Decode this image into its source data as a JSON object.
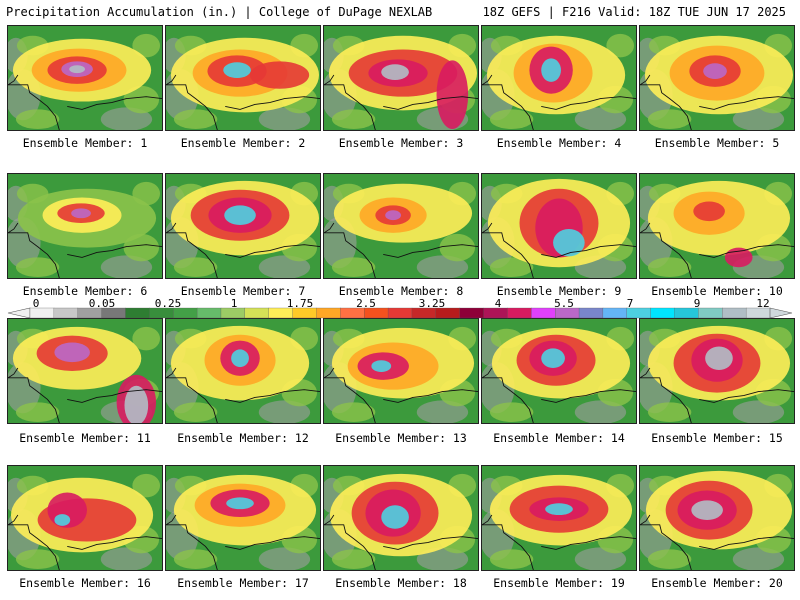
{
  "header": {
    "title": "Precipitation Accumulation (in.) | College of DuPage NEXLAB",
    "run_info": "18Z GEFS | F216 Valid: 18Z TUE JUN 17 2025"
  },
  "members": [
    {
      "label": "Ensemble Member: 1"
    },
    {
      "label": "Ensemble Member: 2"
    },
    {
      "label": "Ensemble Member: 3"
    },
    {
      "label": "Ensemble Member: 4"
    },
    {
      "label": "Ensemble Member: 5"
    },
    {
      "label": "Ensemble Member: 6"
    },
    {
      "label": "Ensemble Member: 7"
    },
    {
      "label": "Ensemble Member: 8"
    },
    {
      "label": "Ensemble Member: 9"
    },
    {
      "label": "Ensemble Member: 10"
    },
    {
      "label": "Ensemble Member: 11"
    },
    {
      "label": "Ensemble Member: 12"
    },
    {
      "label": "Ensemble Member: 13"
    },
    {
      "label": "Ensemble Member: 14"
    },
    {
      "label": "Ensemble Member: 15"
    },
    {
      "label": "Ensemble Member: 16"
    },
    {
      "label": "Ensemble Member: 17"
    },
    {
      "label": "Ensemble Member: 18"
    },
    {
      "label": "Ensemble Member: 19"
    },
    {
      "label": "Ensemble Member: 20"
    }
  ],
  "colorbar": {
    "tick_labels": [
      "0",
      "0.05",
      "0.25",
      "1",
      "1.75",
      "2.5",
      "3.25",
      "4",
      "5.5",
      "7",
      "9",
      "12"
    ],
    "colors": [
      "#f0f0f0",
      "#c8c8c8",
      "#a0a0a0",
      "#787878",
      "#2e7d32",
      "#388e3c",
      "#43a047",
      "#66bb6a",
      "#9ccc65",
      "#d4e157",
      "#ffee58",
      "#ffca28",
      "#ffa726",
      "#ff7043",
      "#f4511e",
      "#e53935",
      "#c62828",
      "#b71c1c",
      "#8e0038",
      "#ad1457",
      "#d81b60",
      "#e040fb",
      "#ba68c8",
      "#7986cb",
      "#64b5f6",
      "#4dd0e1",
      "#00e5ff",
      "#26c6da",
      "#80cbc4",
      "#b0bec5",
      "#cfd8dc"
    ]
  },
  "palette": {
    "ground": "#3c9a3c",
    "dark": "#2e7d32",
    "light": "#8bc34a",
    "yellow": "#ffee58",
    "orange": "#ffa726",
    "red": "#e53935",
    "maroon": "#8e0038",
    "magenta": "#d81b60",
    "purple": "#ba68c8",
    "cyan": "#4dd0e1",
    "gray": "#b0bec5"
  }
}
